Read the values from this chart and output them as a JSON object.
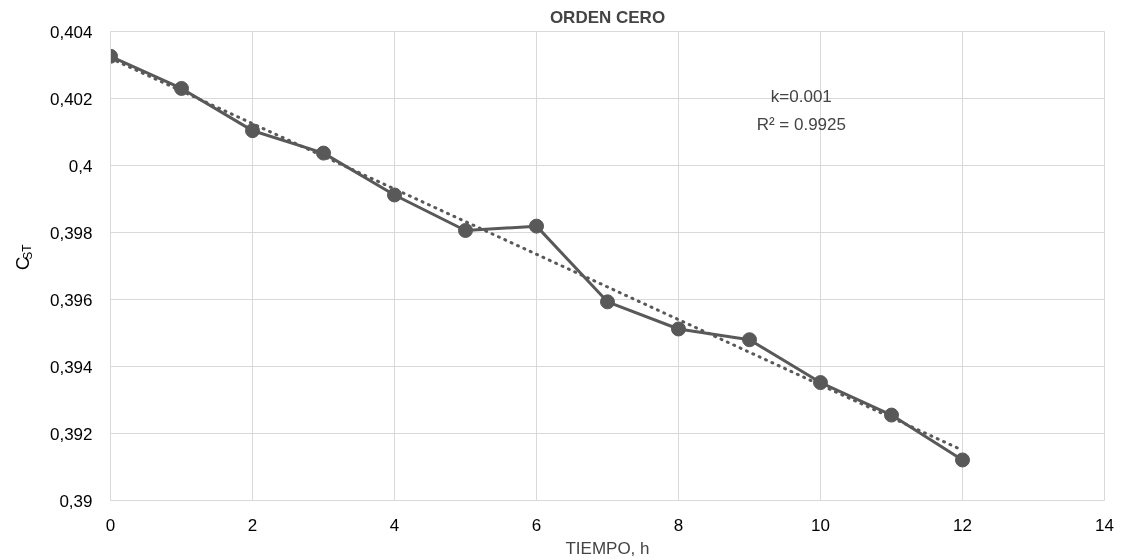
{
  "chart_data": {
    "type": "line",
    "title": "ORDEN CERO",
    "xlabel": "TIEMPO, h",
    "ylabel": "C$_{ST}$",
    "x": [
      0,
      1,
      2,
      3,
      4,
      5,
      6,
      7,
      8,
      9,
      10,
      11,
      12
    ],
    "series": [
      {
        "color": "#595959",
        "marker": "circle",
        "line_style": "solid",
        "values": [
          0.40326,
          0.4023,
          0.40104,
          0.40037,
          0.39912,
          0.39806,
          0.39819,
          0.39593,
          0.39512,
          0.3948,
          0.39352,
          0.39255,
          0.39121
        ]
      },
      {
        "type": "line",
        "x": [
          0,
          12
        ],
        "color": "#595959",
        "marker": "none",
        "line_style": "dotted",
        "values": [
          0.4032,
          0.3915
        ]
      }
    ],
    "xlim": [
      0,
      14
    ],
    "xticks": [
      0,
      2,
      4,
      6,
      8,
      10,
      12,
      14
    ],
    "ylim": [
      0.39,
      0.404
    ],
    "yticks": [
      {
        "value": 0.39,
        "label": "0,39"
      },
      {
        "value": 0.392,
        "label": "0,392"
      },
      {
        "value": 0.394,
        "label": "0,394"
      },
      {
        "value": 0.396,
        "label": "0,396"
      },
      {
        "value": 0.398,
        "label": "0,398"
      },
      {
        "value": 0.4,
        "label": "0,4"
      },
      {
        "value": 0.402,
        "label": "0,402"
      },
      {
        "value": 0.404,
        "label": "0,404"
      }
    ],
    "grid": true,
    "annotations": [
      "k=0.001",
      "R² = 0.9925"
    ]
  }
}
